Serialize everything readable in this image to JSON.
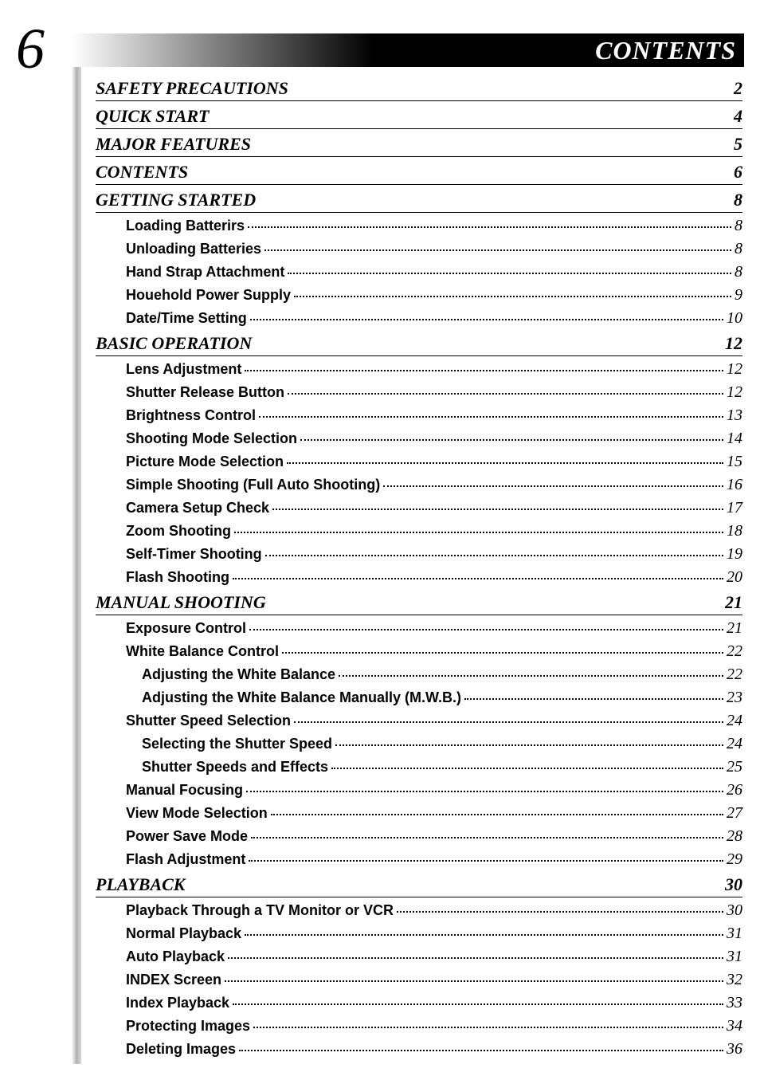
{
  "page_number": "6",
  "header_title": "CONTENTS",
  "colors": {
    "text": "#000000",
    "header_text": "#ffffff",
    "page_bg": "#ffffff",
    "underline": "#000000"
  },
  "typography": {
    "page_number_fontsize": 72,
    "header_title_fontsize": 32,
    "section_title_fontsize": 22,
    "entry_title_fontsize": 18,
    "entry_page_fontsize": 20,
    "serif_family": "Georgia, 'Times New Roman', serif",
    "sans_family": "Arial, Helvetica, sans-serif"
  },
  "toc": [
    {
      "type": "section",
      "title": "SAFETY PRECAUTIONS",
      "page": "2"
    },
    {
      "type": "section",
      "title": "QUICK START",
      "page": "4"
    },
    {
      "type": "section",
      "title": "MAJOR FEATURES",
      "page": "5"
    },
    {
      "type": "section",
      "title": "CONTENTS",
      "page": "6"
    },
    {
      "type": "section",
      "title": "GETTING STARTED",
      "page": "8"
    },
    {
      "type": "entry",
      "indent": 0,
      "title": "Loading Batterirs",
      "page": "8"
    },
    {
      "type": "entry",
      "indent": 0,
      "title": "Unloading Batteries",
      "page": "8"
    },
    {
      "type": "entry",
      "indent": 0,
      "title": "Hand Strap Attachment",
      "page": "8"
    },
    {
      "type": "entry",
      "indent": 0,
      "title": "Houehold Power Supply",
      "page": "9"
    },
    {
      "type": "entry",
      "indent": 0,
      "title": "Date/Time Setting",
      "page": "10"
    },
    {
      "type": "section",
      "title": "BASIC OPERATION",
      "page": "12"
    },
    {
      "type": "entry",
      "indent": 0,
      "title": "Lens Adjustment",
      "page": "12"
    },
    {
      "type": "entry",
      "indent": 0,
      "title": "Shutter Release Button",
      "page": "12"
    },
    {
      "type": "entry",
      "indent": 0,
      "title": "Brightness Control",
      "page": "13"
    },
    {
      "type": "entry",
      "indent": 0,
      "title": "Shooting Mode Selection",
      "page": "14"
    },
    {
      "type": "entry",
      "indent": 0,
      "title": "Picture Mode Selection",
      "page": "15"
    },
    {
      "type": "entry",
      "indent": 0,
      "title": "Simple Shooting (Full Auto Shooting)",
      "page": "16"
    },
    {
      "type": "entry",
      "indent": 0,
      "title": "Camera Setup Check",
      "page": "17"
    },
    {
      "type": "entry",
      "indent": 0,
      "title": "Zoom Shooting",
      "page": "18"
    },
    {
      "type": "entry",
      "indent": 0,
      "title": "Self-Timer Shooting",
      "page": "19"
    },
    {
      "type": "entry",
      "indent": 0,
      "title": "Flash Shooting",
      "page": "20"
    },
    {
      "type": "section",
      "title": "MANUAL SHOOTING",
      "page": "21"
    },
    {
      "type": "entry",
      "indent": 0,
      "title": "Exposure Control",
      "page": "21"
    },
    {
      "type": "entry",
      "indent": 0,
      "title": "White Balance Control",
      "page": "22"
    },
    {
      "type": "entry",
      "indent": 1,
      "title": "Adjusting the White Balance",
      "page": "22"
    },
    {
      "type": "entry",
      "indent": 1,
      "title": "Adjusting the White Balance Manually (M.W.B.)",
      "page": "23"
    },
    {
      "type": "entry",
      "indent": 0,
      "title": "Shutter Speed Selection",
      "page": "24"
    },
    {
      "type": "entry",
      "indent": 1,
      "title": "Selecting the Shutter Speed",
      "page": "24"
    },
    {
      "type": "entry",
      "indent": 1,
      "title": "Shutter Speeds and Effects",
      "page": "25"
    },
    {
      "type": "entry",
      "indent": 0,
      "title": "Manual Focusing",
      "page": "26"
    },
    {
      "type": "entry",
      "indent": 0,
      "title": "View Mode Selection",
      "page": "27"
    },
    {
      "type": "entry",
      "indent": 0,
      "title": "Power Save Mode",
      "page": "28"
    },
    {
      "type": "entry",
      "indent": 0,
      "title": "Flash Adjustment",
      "page": "29"
    },
    {
      "type": "section",
      "title": "PLAYBACK",
      "page": "30"
    },
    {
      "type": "entry",
      "indent": 0,
      "title": "Playback Through a TV Monitor or VCR",
      "page": "30"
    },
    {
      "type": "entry",
      "indent": 0,
      "title": "Normal Playback",
      "page": "31"
    },
    {
      "type": "entry",
      "indent": 0,
      "title": "Auto Playback",
      "page": "31"
    },
    {
      "type": "entry",
      "indent": 0,
      "title": "INDEX Screen",
      "page": "32"
    },
    {
      "type": "entry",
      "indent": 0,
      "title": "Index Playback",
      "page": "33"
    },
    {
      "type": "entry",
      "indent": 0,
      "title": "Protecting Images",
      "page": "34"
    },
    {
      "type": "entry",
      "indent": 0,
      "title": "Deleting Images",
      "page": "36"
    }
  ]
}
